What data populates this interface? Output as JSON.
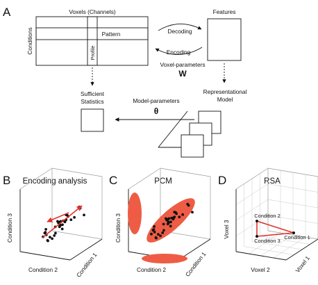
{
  "panel_a": {
    "letter": "A",
    "voxels_label": "Voxels (Channels)",
    "conditions_label": "Conditions",
    "pattern_label": "Pattern",
    "profile_label": "Profile",
    "features_label": "Features",
    "decoding_label": "Decoding",
    "encoding_label": "Encoding",
    "voxel_params_label": "Voxel-parameters",
    "voxel_params_symbol": "W",
    "sufficient_stats_line1": "Sufficient",
    "sufficient_stats_line2": "Statistics",
    "rep_model_line1": "Representational",
    "rep_model_line2": "Model",
    "model_params_label": "Model-parameters",
    "model_params_symbol": "θ"
  },
  "panel_b": {
    "letter": "B",
    "title": "Encoding analysis",
    "axis_x": "Condition 2",
    "axis_y": "Condition 1",
    "axis_z": "Condition 3"
  },
  "panel_c": {
    "letter": "C",
    "title": "PCM",
    "axis_x": "Condition 2",
    "axis_y": "Condition 1",
    "axis_z": "Condition 3"
  },
  "panel_d": {
    "letter": "D",
    "title": "RSA",
    "axis_x": "Voxel 2",
    "axis_y": "Voxel 1",
    "axis_z": "Voxel 3",
    "point_labels": [
      "Condition 2",
      "Condition 3",
      "Condition 1"
    ]
  },
  "colors": {
    "arrow_red": "#e0322a",
    "ellipse_fill": "#ee5c45",
    "grid": "#c8c8c8"
  }
}
